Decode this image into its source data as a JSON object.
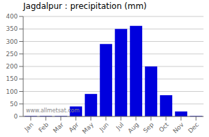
{
  "chart_data": {
    "type": "bar",
    "title": "Jagdalpur : precipitation (mm)",
    "categories": [
      "Jan",
      "Feb",
      "Mar",
      "Apr",
      "May",
      "Jun",
      "Jul",
      "Aug",
      "Sep",
      "Oct",
      "Nov",
      "Dec"
    ],
    "values": [
      2,
      2,
      2,
      40,
      90,
      290,
      350,
      362,
      200,
      85,
      20,
      2
    ],
    "color": "#0000dd",
    "ylim": [
      0,
      400
    ],
    "yticks": [
      0,
      50,
      100,
      150,
      200,
      250,
      300,
      350,
      400
    ],
    "grid": true,
    "annotations": [
      "www.allmetsat.com"
    ]
  }
}
